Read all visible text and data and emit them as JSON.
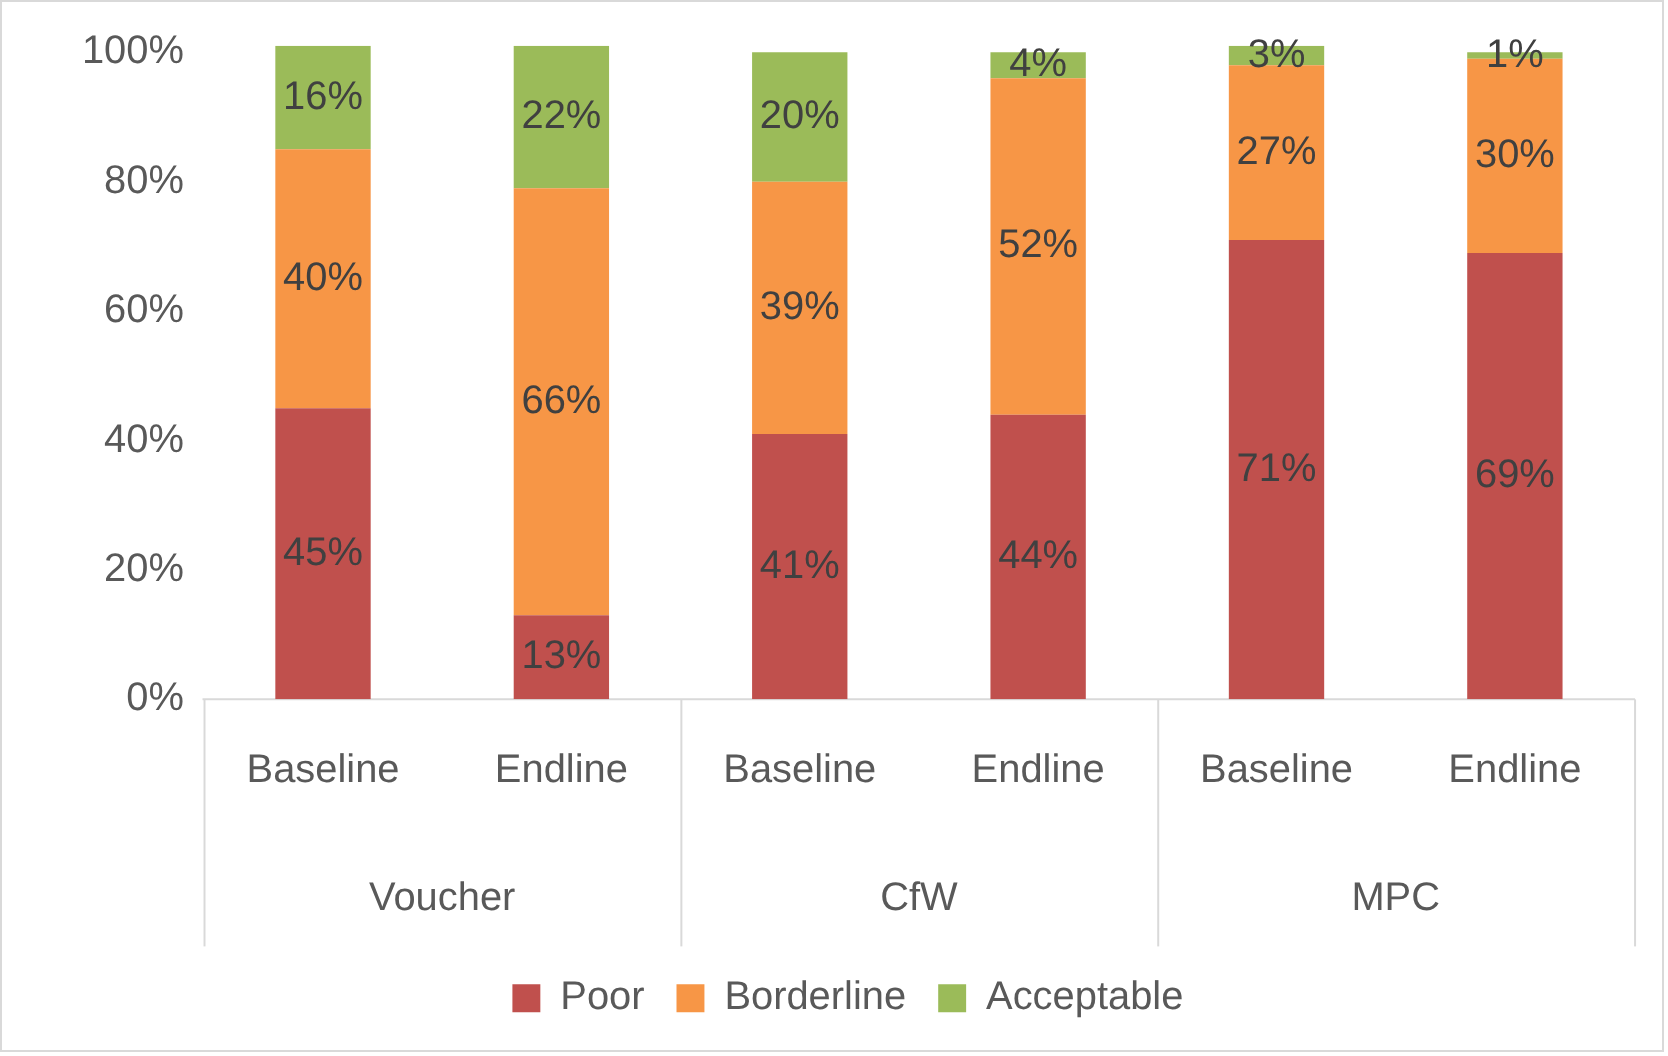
{
  "chart_data": {
    "type": "bar",
    "stacked": true,
    "categories": [
      "Baseline",
      "Endline",
      "Baseline",
      "Endline",
      "Baseline",
      "Endline"
    ],
    "annotations": [
      "Voucher",
      "CfW",
      "MPC"
    ],
    "series": [
      {
        "name": "Poor",
        "color": "#c0504d",
        "values": [
          45,
          13,
          41,
          44,
          71,
          69
        ],
        "value_labels": [
          "45%",
          "13%",
          "41%",
          "44%",
          "71%",
          "69%"
        ]
      },
      {
        "name": "Borderline",
        "color": "#f79646",
        "values": [
          40,
          66,
          39,
          52,
          27,
          30
        ],
        "value_labels": [
          "40%",
          "66%",
          "39%",
          "52%",
          "27%",
          "30%"
        ]
      },
      {
        "name": "Acceptable",
        "color": "#9bbb59",
        "values": [
          16,
          22,
          20,
          4,
          3,
          1
        ],
        "value_labels": [
          "16%",
          "22%",
          "20%",
          "4%",
          "3%",
          "1%"
        ]
      }
    ],
    "ylim": [
      0,
      101
    ],
    "yticks": [
      {
        "value": 0,
        "label": "0%"
      },
      {
        "value": 20,
        "label": "20%"
      },
      {
        "value": 40,
        "label": "40%"
      },
      {
        "value": 60,
        "label": "60%"
      },
      {
        "value": 80,
        "label": "80%"
      },
      {
        "value": 100,
        "label": "100%"
      }
    ],
    "grid": false,
    "legend": "bottom"
  }
}
